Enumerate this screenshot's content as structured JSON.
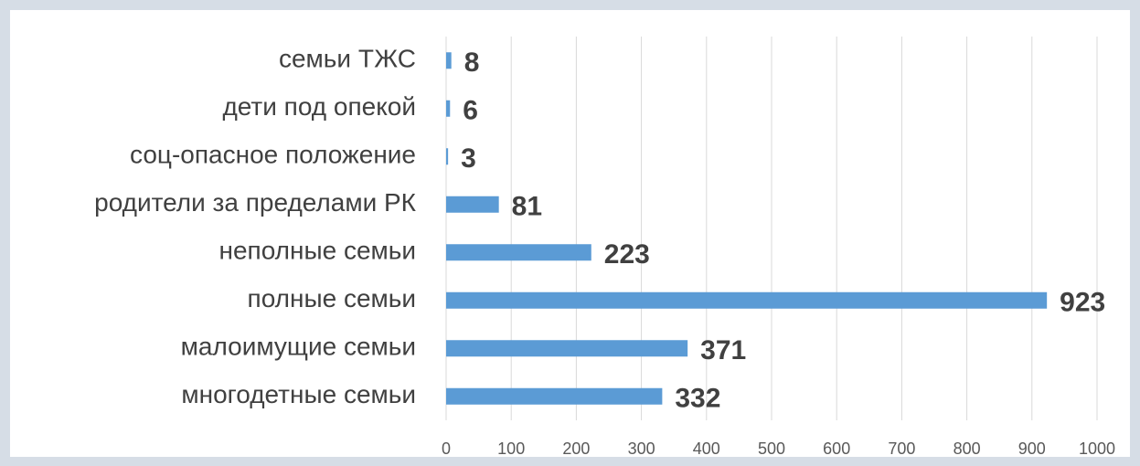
{
  "chart_data": {
    "type": "bar",
    "orientation": "horizontal",
    "categories": [
      "семьи ТЖС",
      "дети под опекой",
      "соц-опасное положение",
      "родители за пределами РК",
      "неполные семьи",
      "полные семьи",
      "малоимущие семьи",
      "многодетные семьи"
    ],
    "values": [
      8,
      6,
      3,
      81,
      223,
      923,
      371,
      332
    ],
    "color": "#5b9bd5",
    "xlim": [
      0,
      1000
    ],
    "xticks": [
      0,
      100,
      200,
      300,
      400,
      500,
      600,
      700,
      800,
      900,
      1000
    ],
    "grid": true
  }
}
